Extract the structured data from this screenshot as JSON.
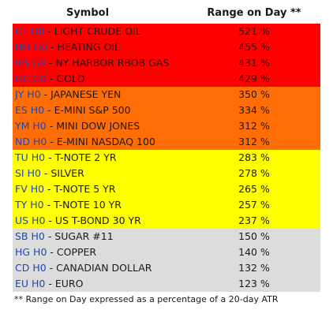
{
  "header": {
    "symbol": "Symbol",
    "range": "Range on Day **"
  },
  "groups": [
    {
      "color": "#ff0000",
      "rows": [
        {
          "ticker": "CL G0",
          "name": " - LIGHT CRUDE OIL",
          "range": "521 %"
        },
        {
          "ticker": "HO G0",
          "name": " - HEATING OIL",
          "range": "455 %"
        },
        {
          "ticker": "RB G0",
          "name": " - NY HARBOR RBOB GAS",
          "range": "431 %"
        },
        {
          "ticker": "GC G0",
          "name": " - GOLD",
          "range": "429 %"
        }
      ]
    },
    {
      "color": "#ff6e06",
      "rows": [
        {
          "ticker": "JY H0",
          "name": " - JAPANESE YEN",
          "range": "350 %"
        },
        {
          "ticker": "ES H0",
          "name": " - E-MINI S&P 500",
          "range": "334 %"
        },
        {
          "ticker": "YM H0",
          "name": " - MINI DOW JONES",
          "range": "312 %"
        },
        {
          "ticker": "ND H0",
          "name": " - E-MINI NASDAQ 100",
          "range": "312 %"
        }
      ]
    },
    {
      "color": "#ffff00",
      "rows": [
        {
          "ticker": "TU H0",
          "name": " - T-NOTE 2 YR",
          "range": "283 %"
        },
        {
          "ticker": "SI H0",
          "name": " - SILVER",
          "range": "278 %"
        },
        {
          "ticker": "FV H0",
          "name": " - T-NOTE 5 YR",
          "range": "265 %"
        },
        {
          "ticker": "TY H0",
          "name": " - T-NOTE 10 YR",
          "range": "257 %"
        },
        {
          "ticker": "US H0",
          "name": " - US T-BOND 30 YR",
          "range": "237 %"
        }
      ]
    },
    {
      "color": "#dcdcdc",
      "rows": [
        {
          "ticker": "SB H0",
          "name": " - SUGAR #11",
          "range": "150 %"
        },
        {
          "ticker": "HG H0",
          "name": " - COPPER",
          "range": "140 %"
        },
        {
          "ticker": "CD H0",
          "name": " - CANADIAN DOLLAR",
          "range": "132 %"
        },
        {
          "ticker": "EU H0",
          "name": " - EURO",
          "range": "123 %"
        }
      ]
    }
  ],
  "footnote": "** Range on Day expressed as a percentage of a 20-day ATR"
}
